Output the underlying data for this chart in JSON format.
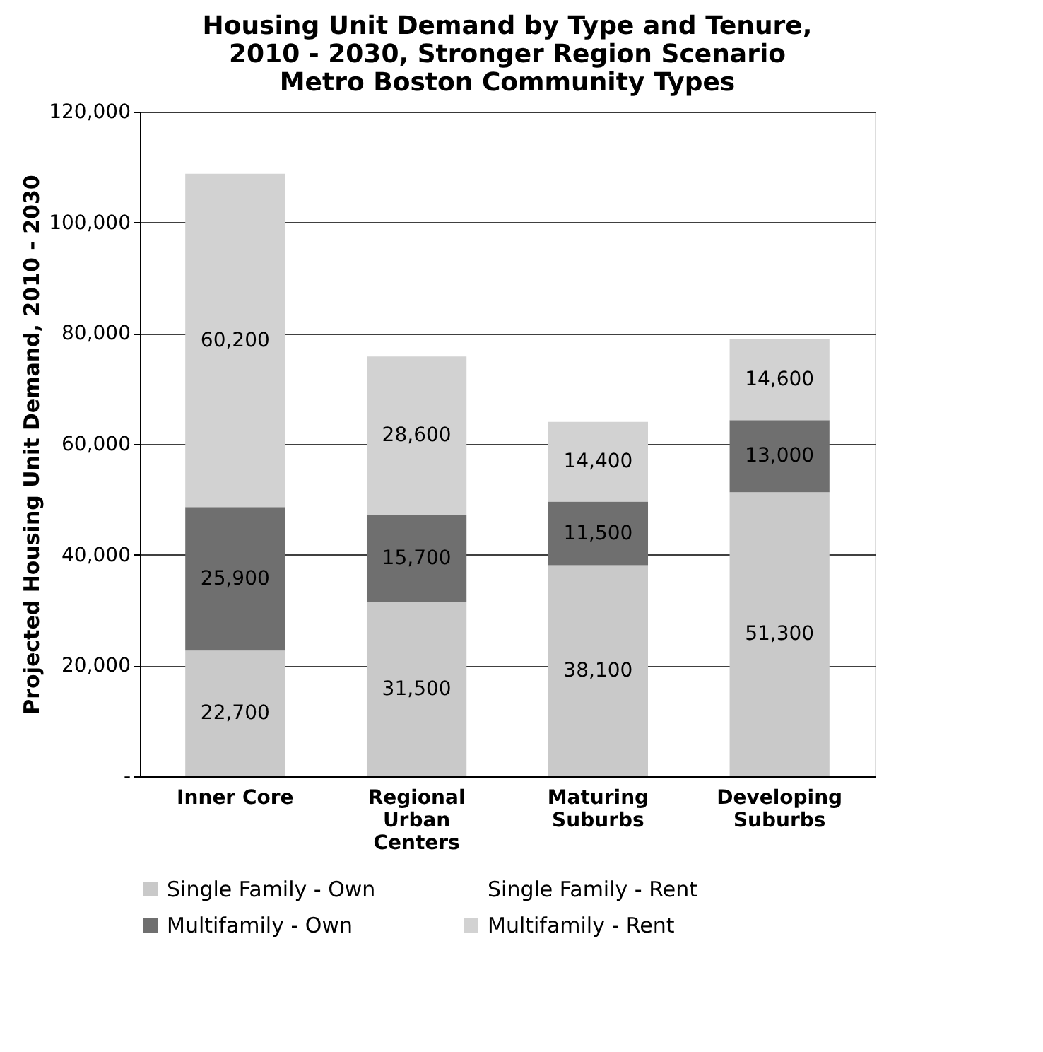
{
  "chart_data": {
    "type": "bar",
    "stacked": true,
    "title": [
      "Housing Unit Demand by Type and Tenure,",
      "2010 - 2030, Stronger Region Scenario",
      "Metro Boston Community Types"
    ],
    "ylabel": "Projected Housing Unit Demand, 2010 - 2030",
    "categories": [
      "Inner Core",
      "Regional Urban Centers",
      "Maturing Suburbs",
      "Developing Suburbs"
    ],
    "series": [
      {
        "name": "Single Family - Own",
        "color": "#c9c9c9",
        "values": [
          22700,
          31500,
          38100,
          51300
        ],
        "value_labels": [
          "22,700",
          "31,500",
          "38,100",
          "51,300"
        ]
      },
      {
        "name": "Single Family - Rent",
        "values": [
          0,
          0,
          0,
          0
        ],
        "value_labels": [
          null,
          null,
          null,
          null
        ]
      },
      {
        "name": "Multifamily - Own",
        "color": "#6f6f6f",
        "values": [
          25900,
          15700,
          11500,
          13000
        ],
        "value_labels": [
          "25,900",
          "15,700",
          "11,500",
          "13,000"
        ]
      },
      {
        "name": "Multifamily - Rent",
        "color": "#d2d2d2",
        "values": [
          60200,
          28600,
          14400,
          14600
        ],
        "value_labels": [
          "60,200",
          "28,600",
          "14,400",
          "14,600"
        ]
      }
    ],
    "ylim": [
      0,
      120000
    ],
    "yticks": [
      {
        "value": 0,
        "label": "-"
      },
      {
        "value": 20000,
        "label": "20,000"
      },
      {
        "value": 40000,
        "label": "40,000"
      },
      {
        "value": 60000,
        "label": "60,000"
      },
      {
        "value": 80000,
        "label": "80,000"
      },
      {
        "value": 100000,
        "label": "100,000"
      },
      {
        "value": 120000,
        "label": "120,000"
      }
    ],
    "grid": "y",
    "legend": "bottom"
  }
}
